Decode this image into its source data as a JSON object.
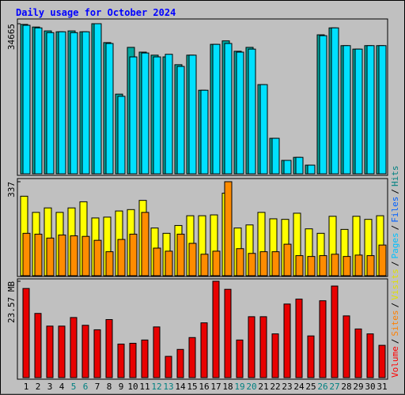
{
  "chart_data": {
    "type": "bar",
    "title": "Daily usage for October 2024",
    "categories": [
      "1",
      "2",
      "3",
      "4",
      "5",
      "6",
      "7",
      "8",
      "9",
      "10",
      "11",
      "12",
      "13",
      "14",
      "15",
      "16",
      "17",
      "18",
      "19",
      "20",
      "21",
      "22",
      "23",
      "24",
      "25",
      "26",
      "27",
      "28",
      "29",
      "30",
      "31"
    ],
    "category_label_colors": [
      "#000000",
      "#000000",
      "#000000",
      "#000000",
      "#008080",
      "#008080",
      "#000000",
      "#000000",
      "#000000",
      "#000000",
      "#000000",
      "#008080",
      "#008080",
      "#000000",
      "#000000",
      "#000000",
      "#000000",
      "#000000",
      "#008080",
      "#008080",
      "#000000",
      "#000000",
      "#000000",
      "#000000",
      "#000000",
      "#008080",
      "#008080",
      "#000000",
      "#000000",
      "#000000",
      "#000000"
    ],
    "panels": [
      {
        "ylim": [
          0,
          34665
        ],
        "yticks": [
          34665
        ],
        "series": [
          {
            "name": "Hits",
            "color": "#00A8A0",
            "values": [
              34500,
              33900,
              33000,
              32800,
              33000,
              32800,
              34665,
              30300,
              18400,
              29200,
              28100,
              27400,
              27000,
              25200,
              27400,
              19300,
              29900,
              30700,
              28300,
              29200,
              20600,
              8200,
              3100,
              3800,
              2000,
              32100,
              33700,
              29600,
              28800,
              29600,
              29600
            ]
          },
          {
            "name": "Files",
            "color": "#00E0FF",
            "values": [
              34300,
              33700,
              32600,
              32800,
              32600,
              32800,
              34665,
              30100,
              17900,
              27000,
              27900,
              27000,
              27600,
              24800,
              27400,
              19300,
              29900,
              30100,
              28100,
              28800,
              20600,
              8200,
              3100,
              3800,
              2000,
              31900,
              33700,
              29600,
              28800,
              29600,
              29600
            ]
          }
        ]
      },
      {
        "ylim": [
          0,
          337
        ],
        "yticks": [
          337
        ],
        "series": [
          {
            "name": "Visits",
            "color": "#FFFF00",
            "values": [
              285,
              227,
              243,
              227,
              243,
              265,
              207,
              210,
              232,
              237,
              270,
              171,
              152,
              180,
              215,
              215,
              218,
              296,
              171,
              182,
              227,
              204,
              202,
              224,
              168,
              152,
              213,
              166,
              213,
              202,
              215
            ]
          },
          {
            "name": "Sites",
            "color": "#FF8C00",
            "values": [
              152,
              149,
              135,
              146,
              143,
              141,
              127,
              86,
              130,
              149,
              227,
              99,
              88,
              149,
              116,
              77,
              88,
              337,
              97,
              80,
              86,
              86,
              113,
              72,
              69,
              72,
              77,
              69,
              74,
              72,
              110
            ]
          }
        ]
      },
      {
        "ylim": [
          0,
          23.57
        ],
        "yticks": [
          {
            "value": 23.57,
            "label": "23.57 MB"
          }
        ],
        "series": [
          {
            "name": "Volume",
            "color": "#E80000",
            "values": [
              21.8,
              15.7,
              12.6,
              12.6,
              14.7,
              12.8,
              11.7,
              14.2,
              8.2,
              8.4,
              9.2,
              12.4,
              5.2,
              6.9,
              9.8,
              13.4,
              23.57,
              21.6,
              9.2,
              14.9,
              14.9,
              10.7,
              18.0,
              19.2,
              10.2,
              18.8,
              22.4,
              15.1,
              11.9,
              10.7,
              7.9
            ]
          }
        ]
      }
    ],
    "legend": {
      "separator": "/",
      "items": [
        {
          "name": "Volume",
          "color": "#FF0000"
        },
        {
          "name": "Sites",
          "color": "#FF8000"
        },
        {
          "name": "Visits",
          "color": "#E0E000"
        },
        {
          "name": "Pages",
          "color": "#00C0FF"
        },
        {
          "name": "Files",
          "color": "#0060FF"
        },
        {
          "name": "Hits",
          "color": "#008080"
        }
      ]
    }
  }
}
